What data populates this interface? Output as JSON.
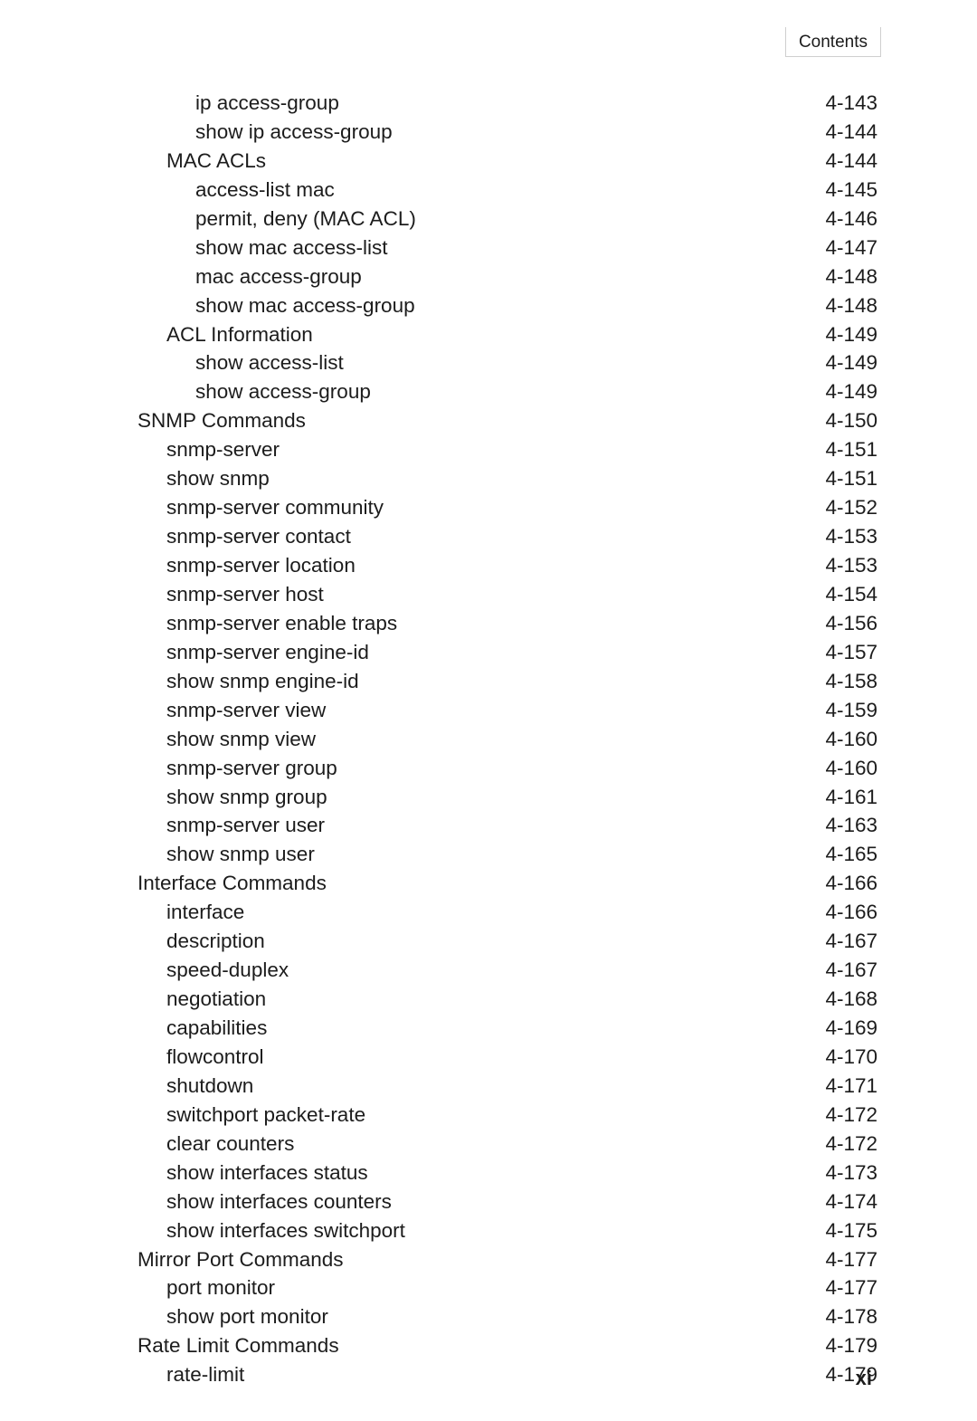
{
  "header": {
    "label": "Contents"
  },
  "pageNumber": "xi",
  "toc": [
    {
      "label": "ip access-group",
      "page": "4-143",
      "level": 3
    },
    {
      "label": "show ip access-group",
      "page": "4-144",
      "level": 3
    },
    {
      "label": "MAC ACLs",
      "page": "4-144",
      "level": 2
    },
    {
      "label": "access-list mac",
      "page": "4-145",
      "level": 3
    },
    {
      "label": "permit, deny (MAC ACL)",
      "page": "4-146",
      "level": 3
    },
    {
      "label": "show mac access-list",
      "page": "4-147",
      "level": 3
    },
    {
      "label": "mac access-group",
      "page": "4-148",
      "level": 3
    },
    {
      "label": "show mac access-group",
      "page": "4-148",
      "level": 3
    },
    {
      "label": "ACL Information",
      "page": "4-149",
      "level": 2
    },
    {
      "label": "show access-list",
      "page": "4-149",
      "level": 3
    },
    {
      "label": "show access-group",
      "page": "4-149",
      "level": 3
    },
    {
      "label": "SNMP Commands",
      "page": "4-150",
      "level": 1
    },
    {
      "label": "snmp-server",
      "page": "4-151",
      "level": 2
    },
    {
      "label": "show snmp",
      "page": "4-151",
      "level": 2
    },
    {
      "label": "snmp-server community",
      "page": "4-152",
      "level": 2
    },
    {
      "label": "snmp-server contact",
      "page": "4-153",
      "level": 2
    },
    {
      "label": "snmp-server location",
      "page": "4-153",
      "level": 2
    },
    {
      "label": "snmp-server host",
      "page": "4-154",
      "level": 2
    },
    {
      "label": "snmp-server enable traps",
      "page": "4-156",
      "level": 2
    },
    {
      "label": "snmp-server engine-id",
      "page": "4-157",
      "level": 2
    },
    {
      "label": "show snmp engine-id",
      "page": "4-158",
      "level": 2
    },
    {
      "label": "snmp-server view",
      "page": "4-159",
      "level": 2
    },
    {
      "label": "show snmp view",
      "page": "4-160",
      "level": 2
    },
    {
      "label": "snmp-server group",
      "page": "4-160",
      "level": 2
    },
    {
      "label": "show snmp group",
      "page": "4-161",
      "level": 2
    },
    {
      "label": "snmp-server user",
      "page": "4-163",
      "level": 2
    },
    {
      "label": "show snmp user",
      "page": "4-165",
      "level": 2
    },
    {
      "label": "Interface Commands",
      "page": "4-166",
      "level": 1
    },
    {
      "label": "interface",
      "page": "4-166",
      "level": 2
    },
    {
      "label": "description",
      "page": "4-167",
      "level": 2
    },
    {
      "label": "speed-duplex",
      "page": "4-167",
      "level": 2
    },
    {
      "label": "negotiation",
      "page": "4-168",
      "level": 2
    },
    {
      "label": "capabilities",
      "page": "4-169",
      "level": 2
    },
    {
      "label": "flowcontrol",
      "page": "4-170",
      "level": 2
    },
    {
      "label": "shutdown",
      "page": "4-171",
      "level": 2
    },
    {
      "label": "switchport packet-rate",
      "page": "4-172",
      "level": 2
    },
    {
      "label": "clear counters",
      "page": "4-172",
      "level": 2
    },
    {
      "label": "show interfaces status",
      "page": "4-173",
      "level": 2
    },
    {
      "label": "show interfaces counters",
      "page": "4-174",
      "level": 2
    },
    {
      "label": "show interfaces switchport",
      "page": "4-175",
      "level": 2
    },
    {
      "label": "Mirror Port Commands",
      "page": "4-177",
      "level": 1
    },
    {
      "label": "port monitor",
      "page": "4-177",
      "level": 2
    },
    {
      "label": "show port monitor",
      "page": "4-178",
      "level": 2
    },
    {
      "label": "Rate Limit Commands",
      "page": "4-179",
      "level": 1
    },
    {
      "label": "rate-limit",
      "page": "4-179",
      "level": 2
    }
  ]
}
